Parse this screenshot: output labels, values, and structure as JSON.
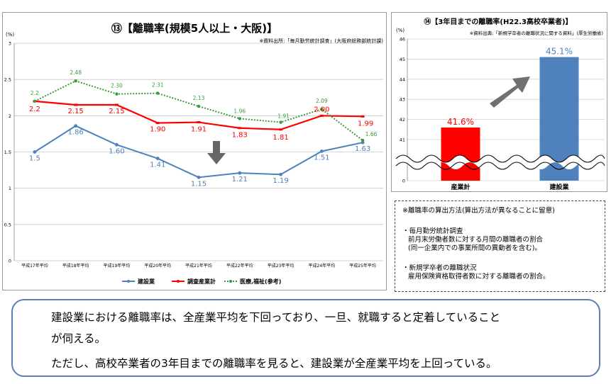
{
  "left_chart": {
    "title": "⑬【離職率(規模5人以上・大阪)】",
    "source": "※資料出所:「毎月勤労統計調査」(大阪府総務部統計課)",
    "y_unit": "(%)"
  },
  "right_chart": {
    "title": "⑭【3年目までの離職率(H22.3高校卒業者)】",
    "source": "※資料出典:「新規学卒者の離職状況に関する資料」(厚生労働省)",
    "y_unit": "(%)"
  },
  "chart_data": [
    {
      "type": "line",
      "title": "⑬【離職率(規模5人以上・大阪)】",
      "categories": [
        "平成17年平均",
        "平成18年平均",
        "平成19年平均",
        "平成20年平均",
        "平成21年平均",
        "平成22年平均",
        "平成23年平均",
        "平成24年平均",
        "平成25年平均"
      ],
      "y_ticks": [
        "0",
        "0.5",
        "1",
        "1.5",
        "2",
        "2.5",
        "3"
      ],
      "ylim": [
        0,
        3
      ],
      "grid": true,
      "legend": "bottom",
      "series": [
        {
          "name": "建設業",
          "color": "#4f81bd",
          "values": [
            1.5,
            1.86,
            1.6,
            1.41,
            1.15,
            1.21,
            1.19,
            1.51,
            1.63
          ],
          "labels": [
            "1.5",
            "1.86",
            "1.60",
            "1.41",
            "1.15",
            "1.21",
            "1.19",
            "1.51",
            "1.63"
          ]
        },
        {
          "name": "調査産業計",
          "color": "#ff0000",
          "values": [
            2.2,
            2.15,
            2.15,
            1.9,
            1.91,
            1.83,
            1.81,
            2.0,
            1.99
          ],
          "labels": [
            "2.2",
            "2.15",
            "2.15",
            "1.90",
            "1.91",
            "1.83",
            "1.81",
            "2.00",
            "1.99"
          ]
        },
        {
          "name": "医療,福祉(参考)",
          "color": "#3a9a3a",
          "values": [
            2.2,
            2.48,
            2.3,
            2.31,
            2.13,
            1.96,
            1.91,
            2.09,
            1.66
          ],
          "labels": [
            "2.2",
            "2.48",
            "2.30",
            "2.31",
            "2.13",
            "1.96",
            "1.91",
            "2.09",
            "1.66"
          ]
        }
      ]
    },
    {
      "type": "bar",
      "title": "⑭【3年目までの離職率(H22.3高校卒業者)】",
      "categories": [
        "産業計",
        "建設業"
      ],
      "values": [
        41.6,
        45.1
      ],
      "labels": [
        "41.6%",
        "45.1%"
      ],
      "colors": [
        "#ff0000",
        "#4f81bd"
      ],
      "y_ticks": [
        "0",
        "41",
        "42",
        "43",
        "44",
        "45",
        "46"
      ],
      "ylim": [
        40,
        46
      ],
      "axis_break": true
    }
  ],
  "notes": {
    "heading": "※離職率の算出方法(算出方法が異なることに留意)",
    "item1_title": "・毎月勤労統計調査",
    "item1_line1": "前月末労働者数に対する月間の離職者の割合",
    "item1_line2": "(同一企業内での事業所間の異動者を含む)。",
    "item2_title": "・新規学卒者の離職状況",
    "item2_line1": "雇用保険資格取得者数に対する離職者の割合。"
  },
  "summary": {
    "line1": "建設業における離職率は、全産業平均を下回っており、一旦、就職すると定着していること",
    "line2": "が伺える。",
    "line3": "ただし、高校卒業者の3年目までの離職率を見ると、建設業が全産業平均を上回っている。"
  }
}
